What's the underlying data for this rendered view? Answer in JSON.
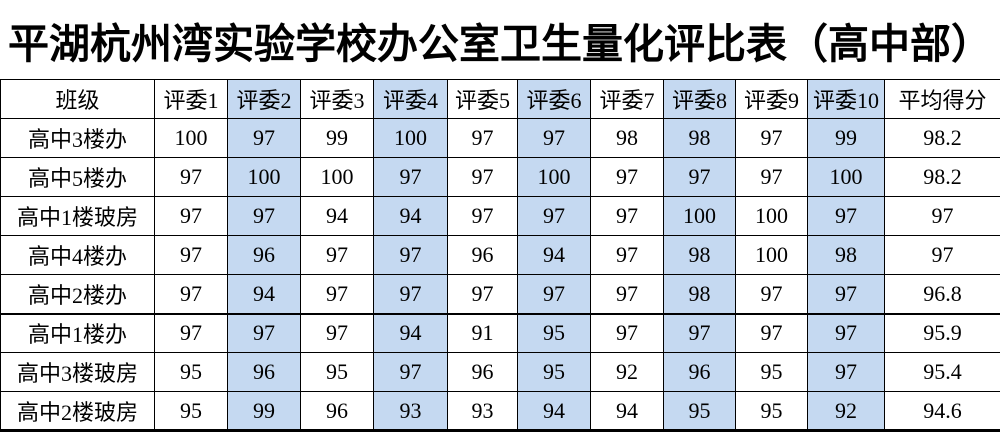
{
  "title": "平湖杭州湾实验学校办公室卫生量化评比表（高中部）",
  "table": {
    "columns": [
      "班级",
      "评委1",
      "评委2",
      "评委3",
      "评委4",
      "评委5",
      "评委6",
      "评委7",
      "评委8",
      "评委9",
      "评委10",
      "平均得分"
    ],
    "highlighted_column_indices": [
      2,
      4,
      6,
      8,
      10
    ],
    "highlight_color": "#C5D9F1",
    "border_color": "#000000",
    "rows": [
      {
        "name": "高中3楼办",
        "scores": [
          100,
          97,
          99,
          100,
          97,
          97,
          98,
          98,
          97,
          99
        ],
        "average": "98.2"
      },
      {
        "name": "高中5楼办",
        "scores": [
          97,
          100,
          100,
          97,
          97,
          100,
          97,
          97,
          97,
          100
        ],
        "average": "98.2"
      },
      {
        "name": "高中1楼玻房",
        "scores": [
          97,
          97,
          94,
          94,
          97,
          97,
          97,
          100,
          100,
          97
        ],
        "average": "97"
      },
      {
        "name": "高中4楼办",
        "scores": [
          97,
          96,
          97,
          97,
          96,
          94,
          97,
          98,
          100,
          98
        ],
        "average": "97"
      },
      {
        "name": "高中2楼办",
        "scores": [
          97,
          94,
          97,
          97,
          97,
          97,
          97,
          98,
          97,
          97
        ],
        "average": "96.8"
      },
      {
        "name": "高中1楼办",
        "scores": [
          97,
          97,
          97,
          94,
          91,
          95,
          97,
          97,
          97,
          97
        ],
        "average": "95.9"
      },
      {
        "name": "高中3楼玻房",
        "scores": [
          95,
          96,
          95,
          97,
          96,
          95,
          92,
          96,
          95,
          97
        ],
        "average": "95.4"
      },
      {
        "name": "高中2楼玻房",
        "scores": [
          95,
          99,
          96,
          93,
          93,
          94,
          94,
          95,
          95,
          92
        ],
        "average": "94.6"
      }
    ]
  }
}
